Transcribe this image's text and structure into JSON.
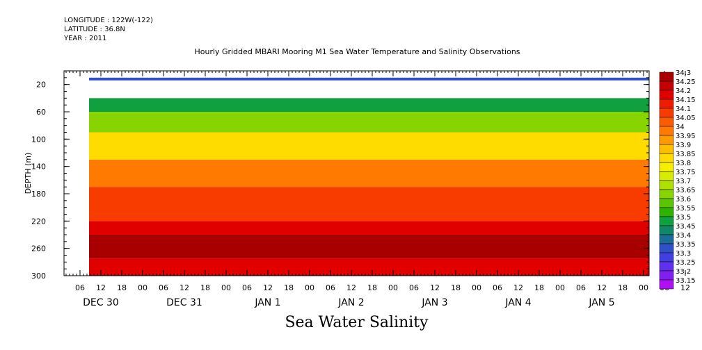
{
  "header": {
    "longitude": "LONGITUDE : 122W(-122)",
    "latitude": "LATITUDE : 36.8N",
    "year": "YEAR : 2011"
  },
  "chart_data": {
    "type": "heatmap",
    "title": "Hourly Gridded MBARI Mooring M1 Sea Water Temperature and Salinity Observations",
    "bottom_title": "Sea Water Salinity",
    "ylabel": "DEPTH (m)",
    "ylim": [
      300,
      0
    ],
    "y_ticks": [
      "20",
      "60",
      "100",
      "140",
      "180",
      "220",
      "260",
      "300"
    ],
    "x_hour_ticks": [
      "06",
      "12",
      "18",
      "00",
      "06",
      "12",
      "18",
      "00",
      "06",
      "12",
      "18",
      "00",
      "06",
      "12",
      "18",
      "00",
      "06",
      "12",
      "18",
      "00",
      "06",
      "12",
      "18",
      "00",
      "06",
      "12",
      "18",
      "00",
      "06",
      "12",
      "18",
      "00"
    ],
    "x_day_labels": [
      "DEC 30",
      "DEC 31",
      "JAN  1",
      "JAN  2",
      "JAN  3",
      "JAN  4",
      "JAN  5"
    ],
    "colorbar": {
      "labels": [
        "34.3",
        "34.25",
        "34.2",
        "34.15",
        "34.1",
        "34.05",
        "34",
        "33.95",
        "33.9",
        "33.85",
        "33.8",
        "33.75",
        "33.7",
        "33.65",
        "33.6",
        "33.55",
        "33.5",
        "33.45",
        "33.4",
        "33.35",
        "33.3",
        "33.25",
        "33.2",
        "33.15"
      ],
      "colors": [
        "#a80000",
        "#c40000",
        "#e00000",
        "#f01c00",
        "#f83c00",
        "#fc5c00",
        "#ff7a00",
        "#ff9a00",
        "#ffbe00",
        "#ffdc00",
        "#f6f000",
        "#d8ec00",
        "#b0e000",
        "#88d400",
        "#5cc400",
        "#2eb400",
        "#10a040",
        "#108868",
        "#1c6c98",
        "#3050c8",
        "#4040e0",
        "#6030ec",
        "#8020f0",
        "#b010f4"
      ]
    },
    "depth_bands": [
      {
        "top": 10,
        "bottom": 14,
        "value": 33.35
      },
      {
        "top": 40,
        "bottom": 60,
        "value": 33.5
      },
      {
        "top": 60,
        "bottom": 90,
        "value": 33.65
      },
      {
        "top": 90,
        "bottom": 130,
        "value": 33.85
      },
      {
        "top": 130,
        "bottom": 170,
        "value": 34.0
      },
      {
        "top": 170,
        "bottom": 220,
        "value": 34.1
      },
      {
        "top": 220,
        "bottom": 240,
        "value": 34.2
      },
      {
        "top": 240,
        "bottom": 275,
        "value": 34.3
      },
      {
        "top": 275,
        "bottom": 300,
        "value": 34.2
      }
    ],
    "grid": false,
    "legend": "right"
  }
}
